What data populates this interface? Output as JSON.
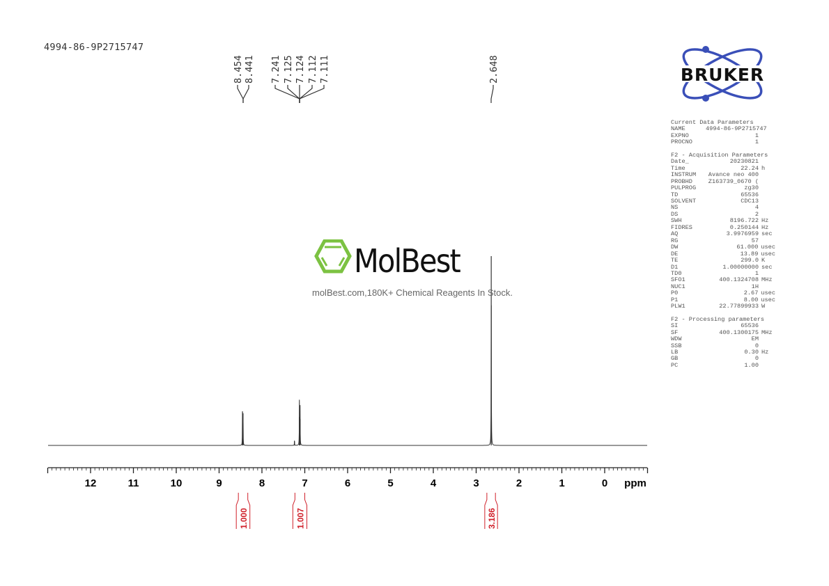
{
  "sample_name": "4994-86-9P2715747",
  "logos": {
    "bruker": "BRUKER",
    "molbest": "MolBest",
    "molbest_tagline": "molBest.com,180K+ Chemical Reagents In Stock."
  },
  "colors": {
    "spectrum": "#333333",
    "integral": "#d0202a",
    "bruker_blue": "#3a4fb8",
    "molbest_green": "#7cc242"
  },
  "parameters": [
    {
      "title": "Current Data Parameters",
      "rows": [
        [
          "NAME",
          "4994-86-9P2715747",
          ""
        ],
        [
          "EXPNO",
          "1",
          ""
        ],
        [
          "PROCNO",
          "1",
          ""
        ]
      ]
    },
    {
      "title": "F2 - Acquisition Parameters",
      "rows": [
        [
          "Date_",
          "20230821",
          ""
        ],
        [
          "Time",
          "22.24",
          "h"
        ],
        [
          "INSTRUM",
          "Avance neo 400",
          ""
        ],
        [
          "PROBHD",
          "Z163739_0670 (",
          ""
        ],
        [
          "PULPROG",
          "zg30",
          ""
        ],
        [
          "TD",
          "65536",
          ""
        ],
        [
          "SOLVENT",
          "CDC13",
          ""
        ],
        [
          "NS",
          "4",
          ""
        ],
        [
          "DS",
          "2",
          ""
        ],
        [
          "SWH",
          "8196.722",
          "Hz"
        ],
        [
          "FIDRES",
          "0.250144",
          "Hz"
        ],
        [
          "AQ",
          "3.9976959",
          "sec"
        ],
        [
          "RG",
          "57",
          ""
        ],
        [
          "DW",
          "61.000",
          "usec"
        ],
        [
          "DE",
          "13.89",
          "usec"
        ],
        [
          "TE",
          "299.0",
          "K"
        ],
        [
          "D1",
          "1.00000000",
          "sec"
        ],
        [
          "TD0",
          "1",
          ""
        ],
        [
          "SFO1",
          "400.1324708",
          "MHz"
        ],
        [
          "NUC1",
          "1H",
          ""
        ],
        [
          "P0",
          "2.67",
          "usec"
        ],
        [
          "P1",
          "8.00",
          "usec"
        ],
        [
          "PLW1",
          "22.77899933",
          "W"
        ]
      ]
    },
    {
      "title": "F2 - Processing parameters",
      "rows": [
        [
          "SI",
          "65536",
          ""
        ],
        [
          "SF",
          "400.1300175",
          "MHz"
        ],
        [
          "WDW",
          "EM",
          ""
        ],
        [
          "SSB",
          "0",
          ""
        ],
        [
          "LB",
          "0.30",
          "Hz"
        ],
        [
          "GB",
          "0",
          ""
        ],
        [
          "PC",
          "1.00",
          ""
        ]
      ]
    }
  ],
  "chart_data": {
    "type": "line",
    "xlabel": "ppm",
    "xlim": [
      13,
      -1
    ],
    "x_ticks": [
      "12",
      "11",
      "10",
      "9",
      "8",
      "7",
      "6",
      "5",
      "4",
      "3",
      "2",
      "1",
      "0"
    ],
    "peaks": [
      {
        "ppm": 8.454,
        "intensity": 0.18
      },
      {
        "ppm": 8.441,
        "intensity": 0.17
      },
      {
        "ppm": 7.241,
        "intensity": 0.025
      },
      {
        "ppm": 7.125,
        "intensity": 0.15
      },
      {
        "ppm": 7.124,
        "intensity": 0.15
      },
      {
        "ppm": 7.112,
        "intensity": 0.14
      },
      {
        "ppm": 7.111,
        "intensity": 0.14
      },
      {
        "ppm": 2.648,
        "intensity": 1.0
      }
    ],
    "peak_labels": [
      {
        "group": [
          8.454,
          8.441
        ],
        "labels": [
          "8.454",
          "8.441"
        ]
      },
      {
        "group": [
          7.241,
          7.125,
          7.124,
          7.112,
          7.111
        ],
        "labels": [
          "7.241",
          "7.125",
          "7.124",
          "7.112",
          "7.111"
        ]
      },
      {
        "group": [
          2.648
        ],
        "labels": [
          "2.648"
        ]
      }
    ],
    "integrals": [
      {
        "from": 8.55,
        "to": 8.33,
        "value": "1.000"
      },
      {
        "from": 7.23,
        "to": 7.0,
        "value": "1.007"
      },
      {
        "from": 2.75,
        "to": 2.55,
        "value": "3.186"
      }
    ]
  }
}
